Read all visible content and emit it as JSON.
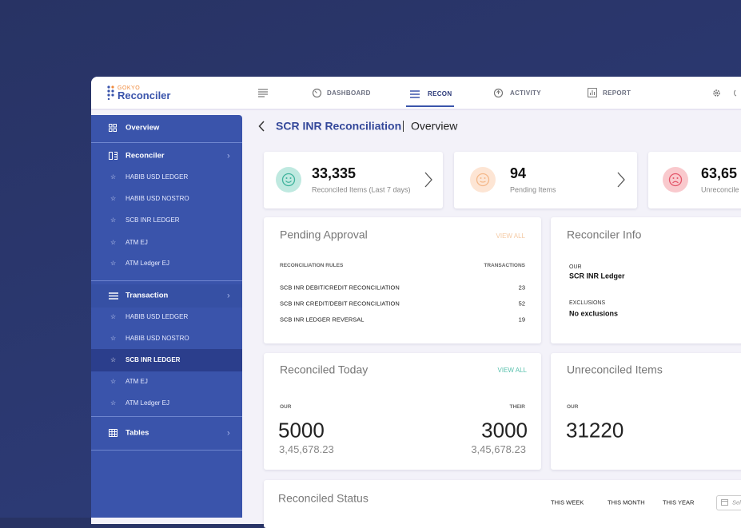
{
  "header": {
    "logo_top": "GOKYO",
    "logo": "Reconciler",
    "nav": [
      "DASHBOARD",
      "RECON",
      "ACTIVITY",
      "REPORT"
    ]
  },
  "sidebar": {
    "overview": "Overview",
    "reconciler": {
      "title": "Reconciler",
      "items": [
        "HABIB USD LEDGER",
        "HABIB USD NOSTRO",
        "SCB INR LEDGER",
        "ATM EJ",
        "ATM Ledger EJ"
      ]
    },
    "transaction": {
      "title": "Transaction",
      "items": [
        "HABIB USD LEDGER",
        "HABIB USD NOSTRO",
        "SCB INR LEDGER",
        "ATM EJ",
        "ATM Ledger EJ"
      ]
    },
    "tables": "Tables"
  },
  "breadcrumb": {
    "title": "SCR INR Reconciliation",
    "current": "Overview"
  },
  "stats": [
    {
      "value": "33,335",
      "label": "Reconciled Items (Last 7 days)"
    },
    {
      "value": "94",
      "label": "Pending Items"
    },
    {
      "value": "63,65",
      "label": "Unreconcile"
    }
  ],
  "pending_approval": {
    "title": "Pending Approval",
    "action": "VIEW ALL",
    "columns": [
      "RECONCILIATION RULES",
      "TRANSACTIONS"
    ],
    "rows": [
      [
        "SCB INR DEBIT/CREDIT RECONCILIATION",
        23
      ],
      [
        "SCB INR CREDIT/DEBIT RECONCILIATION",
        52
      ],
      [
        "SCB INR LEDGER REVERSAL",
        19
      ]
    ]
  },
  "reconciler_info": {
    "title": "Reconciler Info",
    "fields": [
      {
        "label": "OUR",
        "value": "SCR INR Ledger"
      },
      {
        "label": "EXCLUSIONS",
        "value": "No exclusions"
      }
    ]
  },
  "reconciled_today": {
    "title": "Reconciled Today",
    "action": "VIEW ALL",
    "our": {
      "label": "OUR",
      "value": "5000",
      "amount": "3,45,678.23"
    },
    "their": {
      "label": "THEIR",
      "value": "3000",
      "amount": "3,45,678.23"
    }
  },
  "unreconciled": {
    "title": "Unreconciled Items",
    "our": {
      "label": "OUR",
      "value": "31220"
    }
  },
  "reconciled_status": {
    "title": "Reconciled Status",
    "filters": [
      "THIS WEEK",
      "THIS MONTH",
      "THIS YEAR"
    ],
    "date": "Sel"
  }
}
